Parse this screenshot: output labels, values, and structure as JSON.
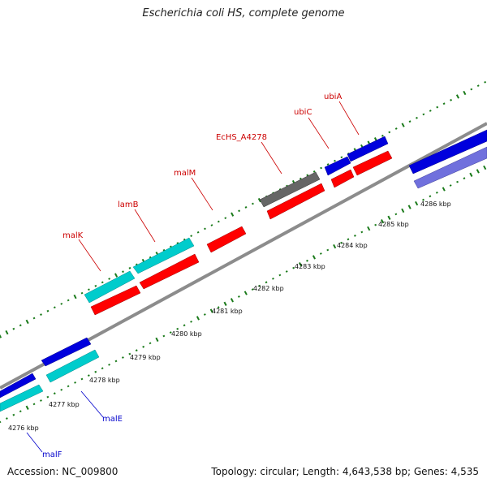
{
  "title": "Escherichia coli HS, complete genome",
  "footer": {
    "accession": "Accession: NC_009800",
    "topology": "Topology: circular; Length: 4,643,538 bp; Genes: 4,535"
  },
  "colors": {
    "backbone": "#8c8c8c",
    "gc_ticks": "#1a7a1a",
    "label_forward": "#cc0000",
    "label_reverse": "#0000cc",
    "cds_forward": "#ff0000",
    "other_forward": "#00cccc",
    "cds_reverse": "#0000dd",
    "other_reverse": "#7070dd",
    "misc": "#666666"
  },
  "kbp_labels": [
    "4276 kbp",
    "4277 kbp",
    "4278 kbp",
    "4279 kbp",
    "4280 kbp",
    "4281 kbp",
    "4282 kbp",
    "4283 kbp",
    "4284 kbp",
    "4285 kbp",
    "4286 kbp"
  ],
  "gene_labels": {
    "malF": "malF",
    "malE": "malE",
    "malK": "malK",
    "lamB": "lamB",
    "malM": "malM",
    "EcHS_A4278": "EcHS_A4278",
    "ubiC": "ubiC",
    "ubiA": "ubiA"
  }
}
